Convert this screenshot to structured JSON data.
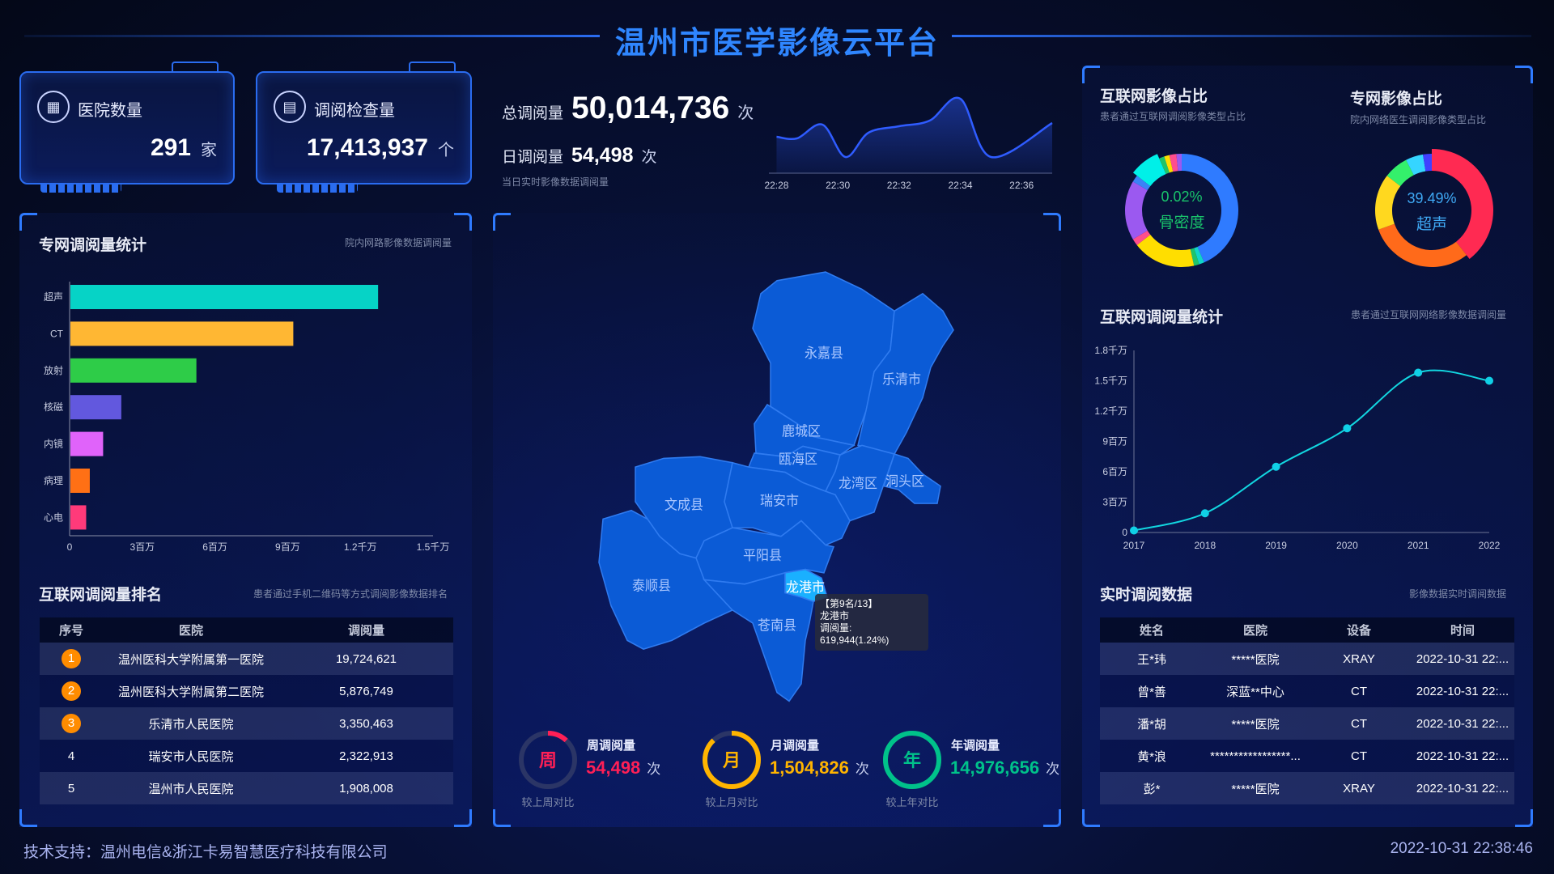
{
  "header": {
    "title": "温州市医学影像云平台"
  },
  "kpi_cards": [
    {
      "label": "医院数量",
      "value": "291",
      "unit": "家",
      "icon": "hospital-icon"
    },
    {
      "label": "调阅检查量",
      "value": "17,413,937",
      "unit": "个",
      "icon": "document-icon"
    }
  ],
  "totals": {
    "total_label": "总调阅量",
    "total_value": "50,014,736",
    "total_unit": "次",
    "daily_label": "日调阅量",
    "daily_value": "54,498",
    "daily_unit": "次",
    "daily_sub": "当日实时影像数据调阅量"
  },
  "chart_data": [
    {
      "type": "area",
      "x": [
        "22:28:00",
        "22:28:40",
        "22:29:30",
        "22:30:15",
        "22:31:00",
        "22:32:00",
        "22:33:00",
        "22:34:00",
        "22:35:00",
        "22:37:00"
      ],
      "values": [
        0.45,
        0.43,
        0.6,
        0.2,
        0.5,
        0.58,
        0.65,
        0.92,
        0.2,
        0.62
      ],
      "x_ticks": [
        "22:28",
        "22:30",
        "22:32",
        "22:34",
        "22:36"
      ],
      "color": "#2f5cff"
    },
    {
      "type": "bar",
      "orientation": "horizontal",
      "title": "专网调阅量统计",
      "subtitle": "院内网路影像数据调阅量",
      "categories": [
        "超声",
        "CT",
        "放射",
        "核磁",
        "内镜",
        "病理",
        "心电"
      ],
      "values": [
        12700000,
        9200000,
        5200000,
        2100000,
        1350000,
        800000,
        650000
      ],
      "colors": [
        "#06d3c6",
        "#ffb733",
        "#2ecc48",
        "#6258de",
        "#e063fa",
        "#ff7015",
        "#ff3a7a"
      ],
      "x_ticks": [
        "0",
        "3百万",
        "6百万",
        "9百万",
        "1.2千万",
        "1.5千万"
      ],
      "xlim": [
        0,
        15000000
      ]
    },
    {
      "type": "pie",
      "title": "互联网影像占比",
      "subtitle": "患者通过互联网调阅影像类型占比",
      "values": [
        43.5,
        1.5,
        1.5,
        18,
        2,
        17,
        2,
        8,
        1.5,
        1.5,
        2,
        1.5
      ],
      "colors": [
        "#2f7bff",
        "#10d5c8",
        "#1ec46b",
        "#ffde00",
        "#ff4d8d",
        "#9b59f0",
        "#3b82f6",
        "#00f0e8",
        "#1ec46b",
        "#ffde00",
        "#ff4d8d",
        "#9b59f0"
      ],
      "highlight_index": 7,
      "center_value": "0.02%",
      "center_label": "骨密度",
      "center_color": "#19c46b"
    },
    {
      "type": "pie",
      "title": "专网影像占比",
      "subtitle": "院内网络医生调阅影像类型占比",
      "values": [
        39.49,
        30,
        16,
        7,
        5,
        2.51
      ],
      "colors": [
        "#ff2a52",
        "#ff6a1a",
        "#ffd81f",
        "#34f06b",
        "#35d5ff",
        "#4040ff"
      ],
      "highlight_index": 0,
      "center_value": "39.49%",
      "center_label": "超声",
      "center_color": "#3fa9f5"
    },
    {
      "type": "line",
      "title": "互联网调阅量统计",
      "subtitle": "患者通过互联网网络影像数据调阅量",
      "categories": [
        "2017",
        "2018",
        "2019",
        "2020",
        "2021",
        "2022"
      ],
      "values": [
        200000,
        1900000,
        6500000,
        10300000,
        15800000,
        15000000
      ],
      "y_ticks": [
        "0",
        "3百万",
        "6百万",
        "9百万",
        "1.2千万",
        "1.5千万",
        "1.8千万"
      ],
      "ylim": [
        0,
        18000000
      ],
      "color": "#12d6e0"
    }
  ],
  "ranking": {
    "title": "互联网调阅量排名",
    "subtitle": "患者通过手机二维码等方式调阅影像数据排名",
    "columns": [
      "序号",
      "医院",
      "调阅量"
    ],
    "rows": [
      [
        "1",
        "温州医科大学附属第一医院",
        "19,724,621"
      ],
      [
        "2",
        "温州医科大学附属第二医院",
        "5,876,749"
      ],
      [
        "3",
        "乐清市人民医院",
        "3,350,463"
      ],
      [
        "4",
        "瑞安市人民医院",
        "2,322,913"
      ],
      [
        "5",
        "温州市人民医院",
        "1,908,008"
      ]
    ]
  },
  "map": {
    "regions": [
      "永嘉县",
      "乐清市",
      "鹿城区",
      "瓯海区",
      "龙湾区",
      "洞头区",
      "文成县",
      "瑞安市",
      "平阳县",
      "泰顺县",
      "苍南县",
      "龙港市"
    ],
    "highlighted": "龙港市",
    "tooltip": {
      "rank": "【第9名/13】",
      "name": "龙港市",
      "value": "调阅量: 619,944(1.24%)"
    }
  },
  "gauges": [
    {
      "char": "周",
      "label": "周调阅量",
      "value": "54,498",
      "unit": "次",
      "compare": "较上周对比",
      "color": "#ff1f56",
      "fill": 0.12
    },
    {
      "char": "月",
      "label": "月调阅量",
      "value": "1,504,826",
      "unit": "次",
      "compare": "较上月对比",
      "color": "#ffb400",
      "fill": 0.88
    },
    {
      "char": "年",
      "label": "年调阅量",
      "value": "14,976,656",
      "unit": "次",
      "compare": "较上年对比",
      "color": "#00c28a",
      "fill": 1.0
    }
  ],
  "realtime": {
    "title": "实时调阅数据",
    "subtitle": "影像数据实时调阅数据",
    "columns": [
      "姓名",
      "医院",
      "设备",
      "时间"
    ],
    "rows": [
      [
        "王*玮",
        "*****医院",
        "XRAY",
        "2022-10-31 22:..."
      ],
      [
        "曾*善",
        "深蓝**中心",
        "CT",
        "2022-10-31 22:..."
      ],
      [
        "潘*胡",
        "*****医院",
        "CT",
        "2022-10-31 22:..."
      ],
      [
        "黄*浪",
        "*****************...",
        "CT",
        "2022-10-31 22:..."
      ],
      [
        "彭*",
        "*****医院",
        "XRAY",
        "2022-10-31 22:..."
      ]
    ]
  },
  "footer": {
    "support": "技术支持：温州电信&浙江卡易智慧医疗科技有限公司",
    "datetime": "2022-10-31 22:38:46"
  }
}
